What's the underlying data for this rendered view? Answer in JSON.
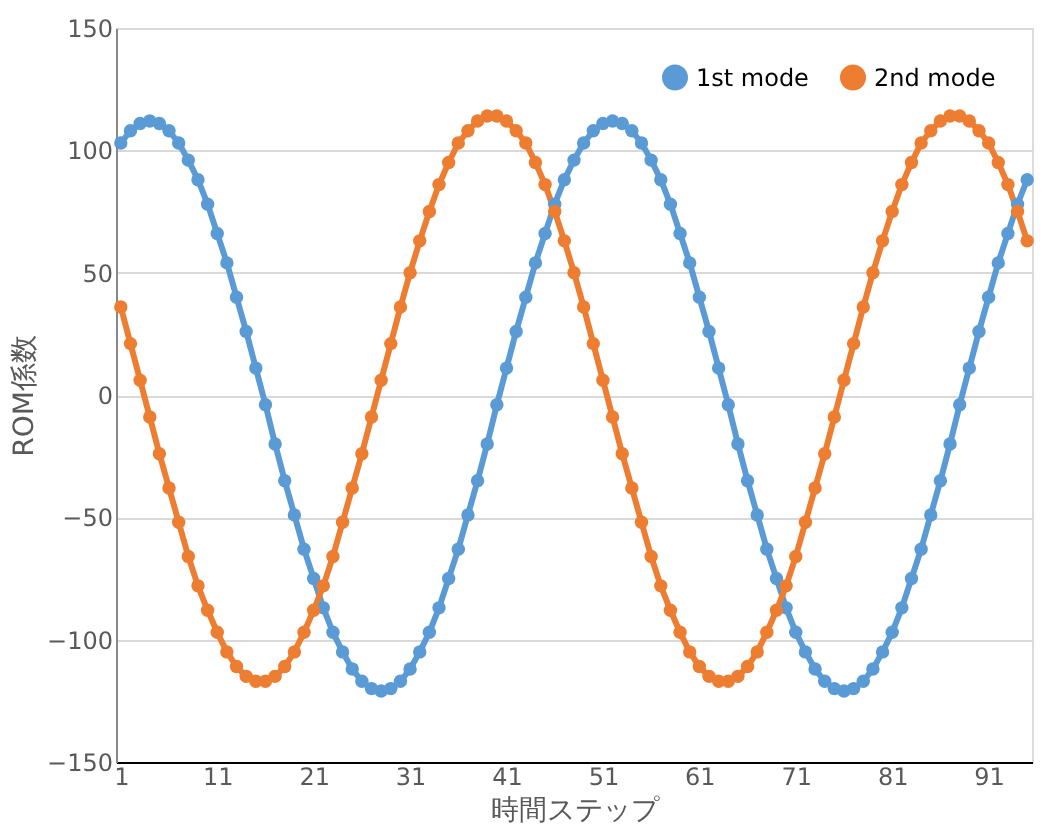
{
  "chart_data": {
    "type": "line",
    "xlabel": "時間ステップ",
    "ylabel": "ROM係数",
    "x": [
      1,
      2,
      3,
      4,
      5,
      6,
      7,
      8,
      9,
      10,
      11,
      12,
      13,
      14,
      15,
      16,
      17,
      18,
      19,
      20,
      21,
      22,
      23,
      24,
      25,
      26,
      27,
      28,
      29,
      30,
      31,
      32,
      33,
      34,
      35,
      36,
      37,
      38,
      39,
      40,
      41,
      42,
      43,
      44,
      45,
      46,
      47,
      48,
      49,
      50,
      51,
      52,
      53,
      54,
      55,
      56,
      57,
      58,
      59,
      60,
      61,
      62,
      63,
      64,
      65,
      66,
      67,
      68,
      69,
      70,
      71,
      72,
      73,
      74,
      75,
      76,
      77,
      78,
      79,
      80,
      81,
      82,
      83,
      84,
      85,
      86,
      87,
      88,
      89,
      90,
      91,
      92,
      93,
      94,
      95
    ],
    "series": [
      {
        "name": "1st mode",
        "color": "#5b9bd5",
        "values": [
          103,
          108,
          111,
          112,
          111,
          108,
          103,
          96,
          88,
          78,
          66,
          54,
          40,
          26,
          11,
          -4,
          -20,
          -35,
          -49,
          -63,
          -75,
          -87,
          -97,
          -105,
          -112,
          -117,
          -120,
          -121,
          -120,
          -117,
          -112,
          -105,
          -97,
          -87,
          -75,
          -63,
          -49,
          -35,
          -20,
          -4,
          11,
          26,
          40,
          54,
          66,
          78,
          88,
          96,
          103,
          108,
          111,
          112,
          111,
          108,
          103,
          96,
          88,
          78,
          66,
          54,
          40,
          26,
          11,
          -4,
          -20,
          -35,
          -49,
          -63,
          -75,
          -87,
          -97,
          -105,
          -112,
          -117,
          -120,
          -121,
          -120,
          -117,
          -112,
          -105,
          -97,
          -87,
          -75,
          -63,
          -49,
          -35,
          -20,
          -4,
          11,
          26,
          40,
          54,
          66,
          78,
          88
        ]
      },
      {
        "name": "2nd mode",
        "color": "#ed7d31",
        "values": [
          36,
          21,
          6,
          -9,
          -24,
          -38,
          -52,
          -66,
          -78,
          -88,
          -97,
          -105,
          -111,
          -115,
          -117,
          -117,
          -115,
          -111,
          -105,
          -97,
          -88,
          -78,
          -66,
          -52,
          -38,
          -24,
          -9,
          6,
          21,
          36,
          50,
          63,
          75,
          86,
          95,
          103,
          108,
          112,
          114,
          114,
          112,
          108,
          103,
          95,
          86,
          75,
          63,
          50,
          36,
          21,
          6,
          -9,
          -24,
          -38,
          -52,
          -66,
          -78,
          -88,
          -97,
          -105,
          -111,
          -115,
          -117,
          -117,
          -115,
          -111,
          -105,
          -97,
          -88,
          -78,
          -66,
          -52,
          -38,
          -24,
          -9,
          6,
          21,
          36,
          50,
          63,
          75,
          86,
          95,
          103,
          108,
          112,
          114,
          114,
          112,
          108,
          103,
          95,
          86,
          75,
          63
        ]
      }
    ],
    "xlim": [
      0.5,
      95.5
    ],
    "xticks": [
      1,
      11,
      21,
      31,
      41,
      51,
      61,
      71,
      81,
      91
    ],
    "ylim": [
      -150,
      150
    ],
    "yticks": [
      -150,
      -100,
      -50,
      0,
      50,
      100,
      150
    ],
    "grid": "y",
    "legend": "top right",
    "marker": "circle",
    "line_style": "solid"
  }
}
